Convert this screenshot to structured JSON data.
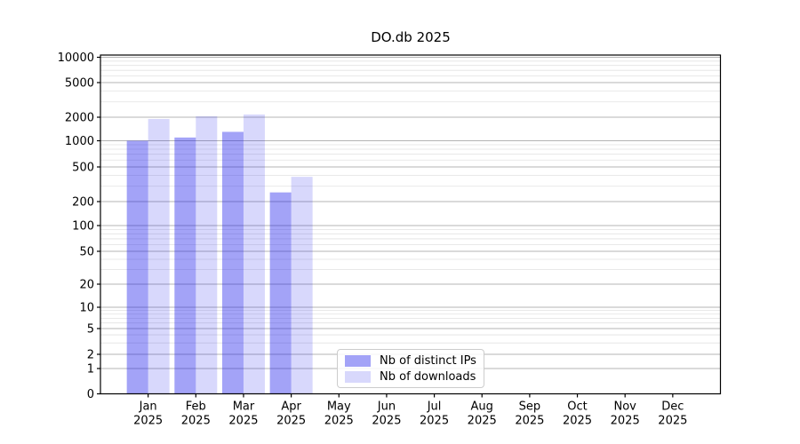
{
  "chart_data": {
    "type": "bar",
    "title": "DO.db 2025",
    "categories": [
      "Jan",
      "Feb",
      "Mar",
      "Apr",
      "May",
      "Jun",
      "Jul",
      "Aug",
      "Sep",
      "Oct",
      "Nov",
      "Dec"
    ],
    "category_year": "2025",
    "series": [
      {
        "name": "Nb of distinct IPs",
        "color": "rgba(25,25,235,0.40)",
        "values": [
          1000,
          1100,
          1300,
          255,
          null,
          null,
          null,
          null,
          null,
          null,
          null,
          null
        ]
      },
      {
        "name": "Nb of downloads",
        "color": "rgba(25,25,235,0.17)",
        "values": [
          1900,
          2050,
          2150,
          385,
          null,
          null,
          null,
          null,
          null,
          null,
          null,
          null
        ]
      }
    ],
    "yscale": "symlog",
    "yticks": [
      0,
      1,
      2,
      5,
      10,
      20,
      50,
      100,
      200,
      500,
      1000,
      2000,
      5000,
      10000
    ],
    "ylim": [
      0,
      10000
    ],
    "grid": true,
    "legend_position": "bottom-center",
    "colors": {
      "axis": "#000000",
      "major_grid": "#b4b4b4",
      "minor_grid": "#e2e2e2",
      "text": "#000000"
    }
  }
}
